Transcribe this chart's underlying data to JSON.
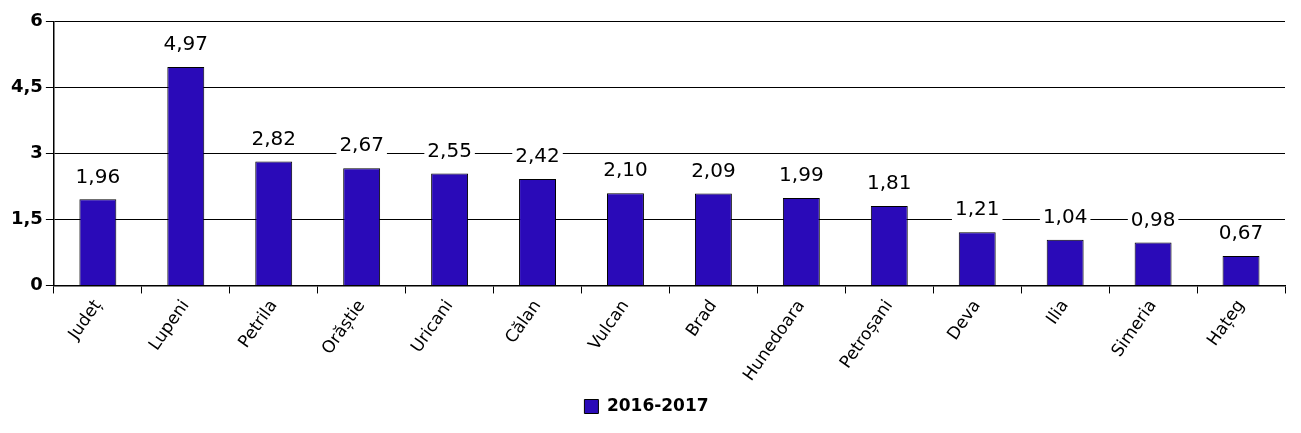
{
  "chart_data": {
    "type": "bar",
    "categories": [
      "Județ",
      "Lupeni",
      "Petrila",
      "Orăștie",
      "Uricani",
      "Călan",
      "Vulcan",
      "Brad",
      "Hunedoara",
      "Petroșani",
      "Deva",
      "Ilia",
      "Simeria",
      "Hațeg"
    ],
    "series": [
      {
        "name": "2016-2017",
        "color": "#2a0ab8",
        "values": [
          1.96,
          4.97,
          2.82,
          2.67,
          2.55,
          2.42,
          2.1,
          2.09,
          1.99,
          1.81,
          1.21,
          1.04,
          0.98,
          0.67
        ],
        "value_labels": [
          "1,96",
          "4,97",
          "2,82",
          "2,67",
          "2,55",
          "2,42",
          "2,10",
          "2,09",
          "1,99",
          "1,81",
          "1,21",
          "1,04",
          "0,98",
          "0,67"
        ]
      }
    ],
    "ylim": [
      0,
      6
    ],
    "yticks": [
      0,
      {
        "value": 1.5,
        "label": "1,5"
      },
      3,
      {
        "value": 4.5,
        "label": "4,5"
      },
      6
    ],
    "grid": "y",
    "legend": "bottom"
  }
}
